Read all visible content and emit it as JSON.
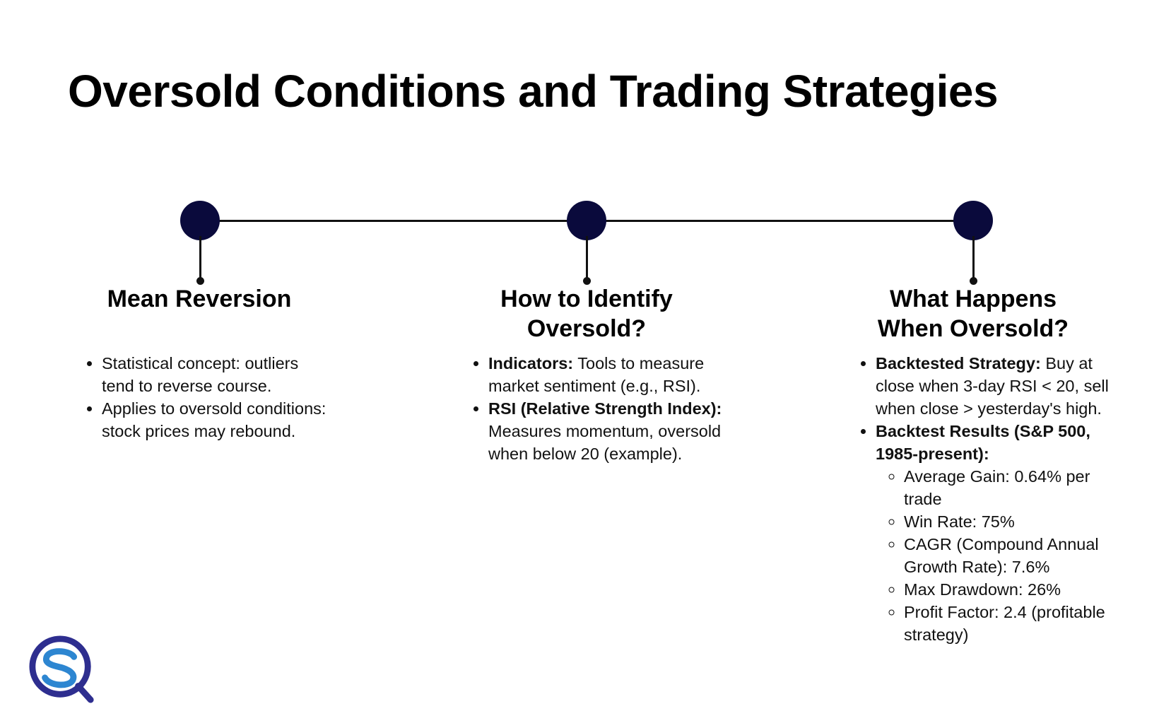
{
  "title": "Oversold Conditions and Trading Strategies",
  "colors": {
    "node": "#0a0a3c",
    "logo_ring": "#2e2e8f",
    "logo_s": "#2d86d1"
  },
  "logo": {
    "icon": "sq-logo-icon"
  },
  "columns": [
    {
      "title_lines": [
        "Mean Reversion"
      ],
      "bullets": [
        {
          "bold": "",
          "text": "Statistical concept: outliers tend to reverse course."
        },
        {
          "bold": "",
          "text": "Applies to oversold conditions: stock prices may rebound."
        }
      ]
    },
    {
      "title_lines": [
        "How to Identify",
        "Oversold?"
      ],
      "bullets": [
        {
          "bold": "Indicators:",
          "text": " Tools to measure market sentiment (e.g., RSI)."
        },
        {
          "bold": "RSI (Relative Strength Index):",
          "text": " Measures momentum, oversold when below 20 (example)."
        }
      ]
    },
    {
      "title_lines": [
        "What Happens",
        "When Oversold?"
      ],
      "bullets": [
        {
          "bold": "Backtested Strategy:",
          "text": " Buy at close when 3-day RSI < 20, sell when close > yesterday's high."
        },
        {
          "bold": "Backtest Results (S&P 500, 1985-present):",
          "text": ""
        }
      ],
      "sub_bullets": [
        "Average Gain: 0.64% per trade",
        "Win Rate: 75%",
        "CAGR (Compound Annual Growth Rate): 7.6%",
        "Max Drawdown: 26%",
        "Profit Factor: 2.4 (profitable strategy)"
      ]
    }
  ]
}
